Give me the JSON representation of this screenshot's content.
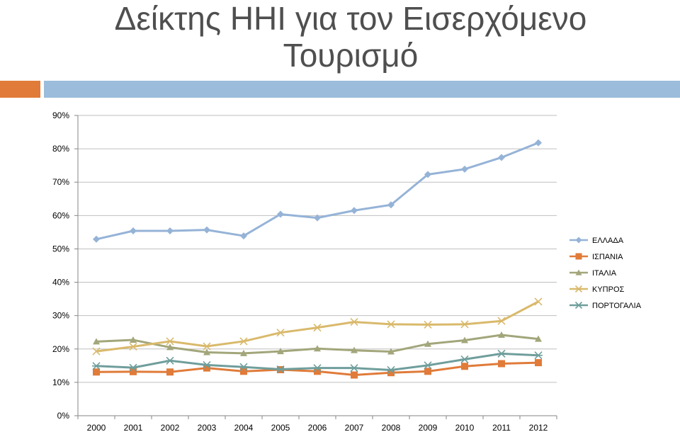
{
  "title": {
    "line1": "Δείκτης HHI για τον Εισερχόμενο",
    "line2": "Τουρισμό"
  },
  "colors": {
    "title_text": "#4f4f4f",
    "accent_orange": "#e07b39",
    "accent_blue": "#9bbcdb",
    "gridline": "#bfbfbf",
    "axis": "#868686"
  },
  "chart_data": {
    "type": "line",
    "categories": [
      "2000",
      "2001",
      "2002",
      "2003",
      "2004",
      "2005",
      "2006",
      "2007",
      "2008",
      "2009",
      "2010",
      "2011",
      "2012"
    ],
    "ylim": [
      0,
      0.9
    ],
    "yticks": [
      0,
      0.1,
      0.2,
      0.3,
      0.4,
      0.5,
      0.6,
      0.7,
      0.8,
      0.9
    ],
    "ytick_labels": [
      "0%",
      "10%",
      "20%",
      "30%",
      "40%",
      "50%",
      "60%",
      "70%",
      "80%",
      "90%"
    ],
    "grid": true,
    "legend_position": "right",
    "series": [
      {
        "name": "ΕΛΛΑΔΑ",
        "color": "#95b3d7",
        "marker": "diamond",
        "values": [
          0.529,
          0.554,
          0.554,
          0.557,
          0.539,
          0.604,
          0.593,
          0.615,
          0.632,
          0.723,
          0.739,
          0.774,
          0.818
        ]
      },
      {
        "name": "ΙΣΠΑΝΙΑ",
        "color": "#e07b39",
        "marker": "square",
        "values": [
          0.131,
          0.132,
          0.131,
          0.143,
          0.133,
          0.138,
          0.133,
          0.122,
          0.129,
          0.133,
          0.148,
          0.156,
          0.159
        ]
      },
      {
        "name": "ΙΤΑΛΙΑ",
        "color": "#a2a67a",
        "marker": "triangle",
        "values": [
          0.222,
          0.227,
          0.205,
          0.19,
          0.187,
          0.193,
          0.201,
          0.196,
          0.192,
          0.215,
          0.226,
          0.242,
          0.23
        ]
      },
      {
        "name": "ΚΥΠΡΟΣ",
        "color": "#d9b96b",
        "marker": "x",
        "values": [
          0.193,
          0.207,
          0.223,
          0.208,
          0.223,
          0.249,
          0.264,
          0.281,
          0.274,
          0.273,
          0.274,
          0.284,
          0.342
        ]
      },
      {
        "name": "ΠΟΡΤΟΓΑΛΙΑ",
        "color": "#6f9e9c",
        "marker": "asterisk",
        "values": [
          0.149,
          0.144,
          0.165,
          0.152,
          0.146,
          0.139,
          0.143,
          0.143,
          0.137,
          0.151,
          0.169,
          0.186,
          0.181
        ]
      }
    ]
  }
}
